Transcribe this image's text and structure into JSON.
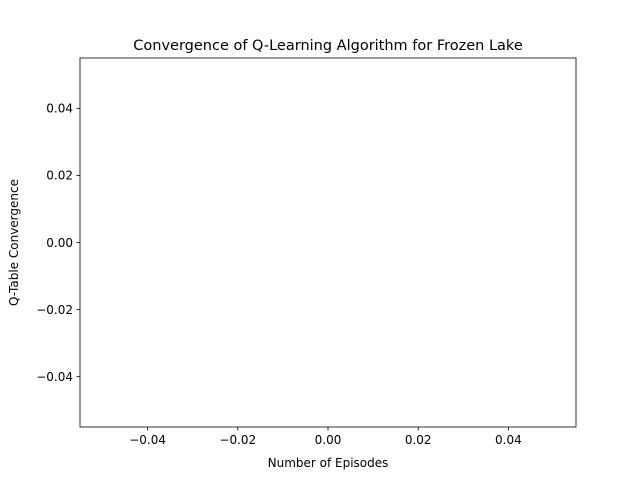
{
  "chart_data": {
    "type": "line",
    "title": "Convergence of Q-Learning Algorithm for Frozen Lake",
    "xlabel": "Number of Episodes",
    "ylabel": "Q-Table Convergence",
    "x": [],
    "series": [
      {
        "values": []
      }
    ],
    "xlim": [
      -0.055,
      0.055
    ],
    "ylim": [
      -0.055,
      0.055
    ],
    "x_ticks": [
      -0.04,
      -0.02,
      0.0,
      0.02,
      0.04
    ],
    "y_ticks": [
      -0.04,
      -0.02,
      0.0,
      0.02,
      0.04
    ],
    "x_tick_labels": [
      "−0.04",
      "−0.02",
      "0.00",
      "0.02",
      "0.04"
    ],
    "y_tick_labels": [
      "−0.04",
      "−0.02",
      "0.00",
      "0.02",
      "0.04"
    ],
    "grid": false,
    "legend": "none"
  }
}
